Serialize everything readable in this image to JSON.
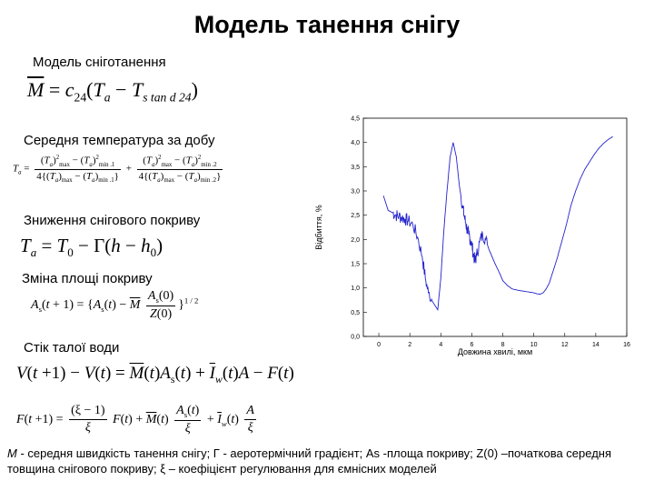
{
  "page": {
    "title": "Модель танення снігу"
  },
  "sections": {
    "melt_label": "Модель сніготанення",
    "avg_temp_label": "Середня температура за добу",
    "cover_decrease_label": "Зниження снігового покриву",
    "area_change_label": "Зміна площі покриву",
    "meltwater_label": "Стік талої води"
  },
  "formulas": {
    "melt": "M = c24(Ta − Ts tan d 24)",
    "avg_temp": "Ta = ((Ta)²max − (Ta)²min.1)/(4{(Ta)max − (Ta)min.1}) + ((Ta)²max − (Ta)²min.2)/(4{(Ta)max − (Ta)min.2})",
    "temp_lapse": "Ta = T0 − Γ(h − h0)",
    "area": "As(t+1) = {As(t) − M·As(0)/Z(0)}^(1/2)",
    "runoff1": "V(t+1) − V(t) = M(t)As(t) + Iw(t)A − F(t)",
    "runoff2": "F(t+1) = ((ξ − 1)/ξ)F(t) + M(t)As(t)/ξ + Iw(t)A/ξ"
  },
  "footnote": {
    "symbol_M": "M",
    "text": " - середня швидкість танення снігу; Г - аеротермічний градієнт; As -площа покриву; Z(0) –початкова середня товщина снігового покриву; ξ – коефіцієнт регулювання для ємнісних моделей"
  },
  "chart_data": {
    "type": "line",
    "xlabel": "Довжина хвилі, мкм",
    "ylabel": "Відбиття, %",
    "xlim": [
      -1,
      16
    ],
    "ylim": [
      0,
      4.5
    ],
    "xticks": [
      "0",
      "2",
      "4",
      "6",
      "8",
      "10",
      "12",
      "14",
      "16"
    ],
    "yticks": [
      "0,0",
      "0,5",
      "1,0",
      "1,5",
      "2,0",
      "2,5",
      "3,0",
      "3,5",
      "4,0",
      "4,5"
    ],
    "grid": false,
    "line_color": "#2222cc",
    "series": [
      {
        "x": [
          0.3,
          0.6,
          0.9,
          1.1,
          1.3,
          1.5,
          1.7,
          1.9,
          2.2,
          2.5,
          2.8,
          3.0,
          3.2,
          3.5,
          3.8,
          4.0,
          4.2,
          4.4,
          4.6,
          4.8,
          5.0,
          5.2,
          5.4,
          5.5,
          5.6,
          5.7,
          5.8,
          5.9,
          6.0,
          6.1,
          6.2,
          6.3,
          6.5,
          6.7,
          6.9,
          7.1,
          7.3,
          7.5,
          7.8,
          8.0,
          8.3,
          8.6,
          9.0,
          9.4,
          9.8,
          10.0,
          10.2,
          10.4,
          10.6,
          10.8,
          11.0,
          11.2,
          11.5,
          11.8,
          12.1,
          12.4,
          12.7,
          13.0,
          13.3,
          13.6,
          13.9,
          14.2,
          14.5,
          14.8,
          15.1
        ],
        "y": [
          2.9,
          2.6,
          2.55,
          2.5,
          2.48,
          2.45,
          2.42,
          2.38,
          2.3,
          2.05,
          1.65,
          1.2,
          0.9,
          0.7,
          0.55,
          1.2,
          2.2,
          3.0,
          3.7,
          4.0,
          3.7,
          3.1,
          2.7,
          2.5,
          2.35,
          2.2,
          2.1,
          2.0,
          1.9,
          1.7,
          1.55,
          1.65,
          1.95,
          2.1,
          2.0,
          1.8,
          1.65,
          1.5,
          1.3,
          1.15,
          1.05,
          0.98,
          0.95,
          0.93,
          0.91,
          0.9,
          0.88,
          0.87,
          0.9,
          0.98,
          1.1,
          1.3,
          1.6,
          1.95,
          2.3,
          2.7,
          3.0,
          3.25,
          3.45,
          3.6,
          3.75,
          3.88,
          3.98,
          4.06,
          4.12
        ]
      }
    ]
  }
}
